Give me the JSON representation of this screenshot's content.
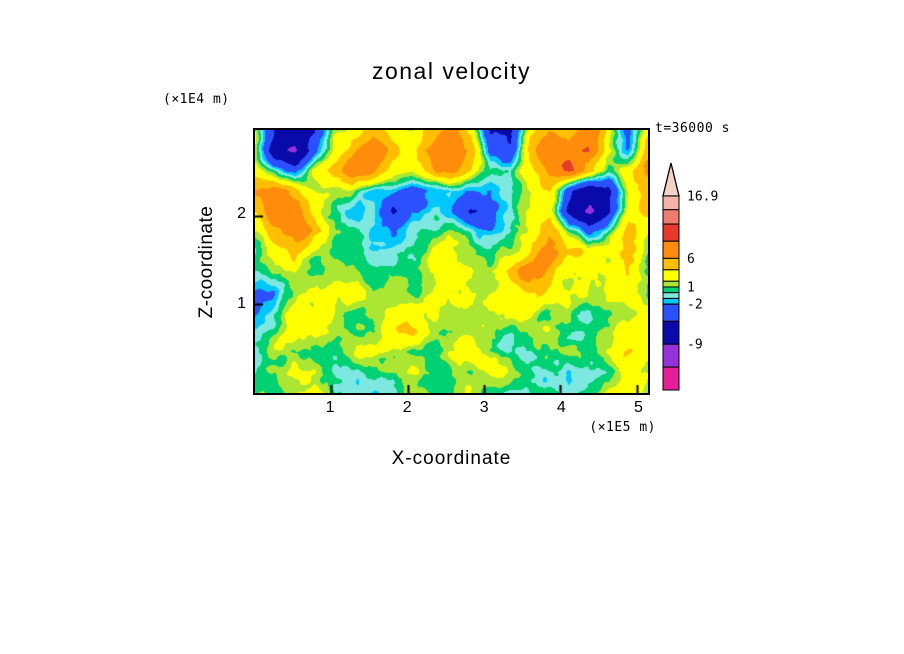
{
  "chart_data": {
    "type": "heatmap",
    "title": "zonal velocity",
    "xlabel": "X-coordinate",
    "ylabel": "Z-coordinate",
    "x_unit_label": "(×1E5 m)",
    "y_unit_label": "(×1E4 m)",
    "time_label": "t=36000 s",
    "xlim": [
      0,
      5.15
    ],
    "ylim": [
      0,
      2.97
    ],
    "x_ticks": [
      {
        "value": 1,
        "label": "1"
      },
      {
        "value": 2,
        "label": "2"
      },
      {
        "value": 3,
        "label": "3"
      },
      {
        "value": 4,
        "label": "4"
      },
      {
        "value": 5,
        "label": "5"
      }
    ],
    "y_ticks": [
      {
        "value": 2,
        "label": "2"
      },
      {
        "value": 1,
        "label": "1"
      }
    ],
    "colorbar": {
      "vmin": -17,
      "vmax": 16.9,
      "overflow_color": "#f5d2c8",
      "labels": [
        {
          "value": 16.9,
          "text": "16.9"
        },
        {
          "value": 6,
          "text": "6"
        },
        {
          "value": 1,
          "text": "1"
        },
        {
          "value": -2,
          "text": "-2"
        },
        {
          "value": -9,
          "text": "-9"
        }
      ],
      "bands": [
        {
          "from": 14.5,
          "to": 16.9,
          "color": "#f4b4aa"
        },
        {
          "from": 12,
          "to": 14.5,
          "color": "#ee7d6e"
        },
        {
          "from": 9,
          "to": 12,
          "color": "#e8392d"
        },
        {
          "from": 6,
          "to": 9,
          "color": "#ff8c0a"
        },
        {
          "from": 4,
          "to": 6,
          "color": "#ffbe00"
        },
        {
          "from": 2,
          "to": 4,
          "color": "#ffff00"
        },
        {
          "from": 1,
          "to": 2,
          "color": "#aae632"
        },
        {
          "from": 0,
          "to": 1,
          "color": "#00d273"
        },
        {
          "from": -1,
          "to": 0,
          "color": "#7de8e0"
        },
        {
          "from": -2,
          "to": -1,
          "color": "#00c8ff"
        },
        {
          "from": -5,
          "to": -2,
          "color": "#2d50ff"
        },
        {
          "from": -9,
          "to": -5,
          "color": "#0a0aaa"
        },
        {
          "from": -13,
          "to": -9,
          "color": "#9632dc"
        },
        {
          "from": -17,
          "to": -13,
          "color": "#e61e96"
        }
      ]
    },
    "field": {
      "cols": 21,
      "rows": 14,
      "values": [
        [
          1.5,
          -6,
          -8,
          -5,
          2,
          3,
          5,
          3,
          2,
          5,
          7,
          3,
          -6,
          -7,
          2,
          5,
          3,
          7,
          2,
          -2,
          3
        ],
        [
          2,
          -8,
          -9,
          -3,
          3,
          6,
          8,
          5,
          3,
          7,
          9,
          6,
          -4,
          -5,
          4,
          8,
          7,
          9,
          3,
          -1,
          5
        ],
        [
          4,
          1,
          -2,
          2,
          5,
          8,
          6,
          3,
          1,
          4,
          7,
          4,
          1,
          -1,
          3,
          6,
          10,
          6,
          1,
          2,
          6
        ],
        [
          6,
          8,
          5,
          2,
          1,
          1,
          -1,
          -2,
          -3,
          -1.5,
          -1,
          -2,
          -2.5,
          -1,
          1,
          3,
          -5,
          -8,
          -6,
          1,
          5
        ],
        [
          4,
          8,
          7,
          3,
          1,
          -1,
          -1.5,
          -5,
          -1.5,
          -1,
          -1.5,
          -5,
          -2,
          -1,
          1,
          2,
          -6,
          -9,
          -5,
          2,
          4
        ],
        [
          2,
          5,
          8,
          4,
          1.5,
          0.5,
          -1,
          -1.5,
          -0.5,
          0.5,
          1,
          -0.5,
          -1.5,
          -0.5,
          2,
          5,
          1,
          -2,
          1,
          5,
          2
        ],
        [
          1,
          3,
          5,
          2,
          0.5,
          1,
          0.5,
          -0.5,
          0.5,
          1.5,
          2,
          1,
          0.5,
          1.5,
          4,
          7,
          5,
          2,
          3,
          6,
          1.5
        ],
        [
          0.5,
          1,
          2,
          1,
          3,
          2,
          1,
          0.5,
          1,
          2,
          3,
          2,
          1,
          5,
          7,
          5,
          2,
          1,
          2,
          3,
          0.5
        ],
        [
          -1,
          -1.5,
          0.5,
          1,
          3.5,
          3,
          1,
          0.5,
          0.5,
          1,
          2,
          1,
          0.5,
          2,
          3.5,
          2,
          1,
          0.5,
          1,
          1.5,
          0.5
        ],
        [
          -1.5,
          -0.5,
          1,
          2,
          3,
          1,
          0.5,
          2,
          3,
          2,
          0.5,
          0.5,
          1,
          1,
          2,
          1,
          0.5,
          -0.5,
          0.5,
          1,
          2
        ],
        [
          0.5,
          1,
          2,
          3,
          2,
          0.5,
          1,
          3,
          3.5,
          2,
          0.5,
          1,
          2,
          0.5,
          1,
          2,
          0.5,
          0.5,
          2,
          3,
          3
        ],
        [
          1,
          2,
          1,
          0.5,
          1,
          2,
          3,
          2,
          1,
          0.5,
          2,
          3,
          1,
          0.5,
          0.5,
          1,
          2,
          1,
          3,
          3.5,
          2
        ],
        [
          0.5,
          1,
          3,
          2,
          0.5,
          0.5,
          1,
          2,
          3,
          1,
          0.5,
          1,
          3,
          2,
          1,
          0.5,
          -0.5,
          0.5,
          1,
          2,
          1
        ],
        [
          1,
          0.5,
          2,
          3,
          1,
          0.5,
          0.5,
          1,
          2,
          0.5,
          1,
          2,
          1,
          0.5,
          0.5,
          1,
          0.5,
          1,
          2,
          3,
          1
        ]
      ],
      "turbulence": {
        "seed": 11,
        "octaves": [
          {
            "size": 42,
            "amp": 1.0
          },
          {
            "size": 21,
            "amp": 0.8
          },
          {
            "size": 11,
            "amp": 0.55
          },
          {
            "size": 6,
            "amp": 0.3
          }
        ]
      }
    }
  }
}
